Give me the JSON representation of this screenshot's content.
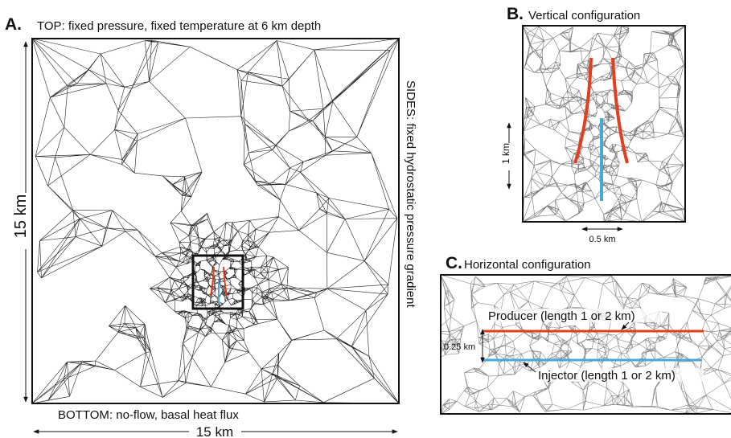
{
  "panel_a": {
    "label": "A.",
    "top": "TOP: fixed pressure, fixed temperature at 6 km depth",
    "sides": "SIDES: fixed hydrostatic pressure gradient",
    "height": "15 km",
    "bottom": "BOTTOM: no-flow, basal heat flux",
    "width": "15 km"
  },
  "panel_b": {
    "label": "B.",
    "title": "Vertical configuration",
    "height": "1 km",
    "width": "0.5 km"
  },
  "panel_c": {
    "label": "C.",
    "title": "Horizontal configuration",
    "producer": "Producer (length 1 or 2 km)",
    "injector": "Injector (length 1 or 2 km)",
    "spacing": "0.25 km"
  }
}
